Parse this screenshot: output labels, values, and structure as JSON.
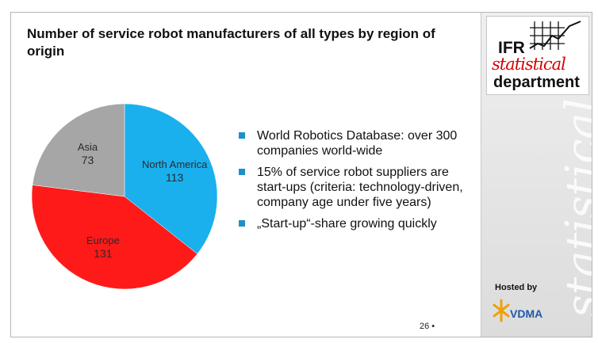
{
  "title": "Number of service robot manufacturers of all types by region of origin",
  "chart_data": {
    "type": "pie",
    "title": "Number of service robot manufacturers of all types by region of origin",
    "start_angle_deg": 0,
    "direction": "clockwise",
    "slices": [
      {
        "label": "North America",
        "value": 113,
        "color": "#1ab0ee"
      },
      {
        "label": "Europe",
        "value": 131,
        "color": "#ff1a1a"
      },
      {
        "label": "Asia",
        "value": 73,
        "color": "#a6a6a6"
      }
    ]
  },
  "bullets": [
    "World Robotics Database: over 300 companies world-wide",
    "15% of service robot suppliers are start-ups (criteria: technology-driven, company age under five years)",
    "„Start-up“-share growing quickly"
  ],
  "logo": {
    "line1": "IFR",
    "line2": "statistical",
    "line3": "department",
    "watermark": "statistical"
  },
  "hosted_by": "Hosted by",
  "host_logo": {
    "text": "VDMA",
    "icon": "vdma-star-icon",
    "color": "#f0a000"
  },
  "page_number": "26 •",
  "colors": {
    "bullet": "#1f8fc9",
    "accent": "#d80000"
  }
}
